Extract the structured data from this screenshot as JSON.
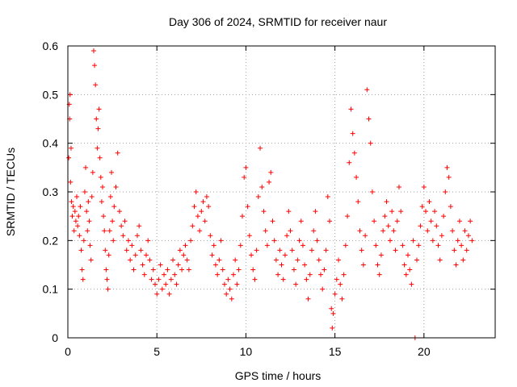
{
  "chart_data": {
    "type": "scatter",
    "title": "Day 306 of 2024, SRMTID for receiver naur",
    "xlabel": "GPS time / hours",
    "ylabel": "SRMTID / TECUs",
    "xlim": [
      0,
      24
    ],
    "ylim": [
      0,
      0.6
    ],
    "xticks": [
      0,
      5,
      10,
      15,
      20
    ],
    "xtick_labels": [
      "0",
      "5",
      "10",
      "15",
      "20"
    ],
    "yticks": [
      0,
      0.1,
      0.2,
      0.3,
      0.4,
      0.5,
      0.6
    ],
    "ytick_labels": [
      "0",
      "0.1",
      "0.2",
      "0.3",
      "0.4",
      "0.5",
      "0.6"
    ],
    "grid": true,
    "marker": "+",
    "color": "#ff0000",
    "series": [
      {
        "name": "SRMTID",
        "points": [
          [
            0.05,
            0.37
          ],
          [
            0.08,
            0.48
          ],
          [
            0.1,
            0.45
          ],
          [
            0.12,
            0.5
          ],
          [
            0.15,
            0.32
          ],
          [
            0.18,
            0.39
          ],
          [
            0.2,
            0.28
          ],
          [
            0.25,
            0.25
          ],
          [
            0.3,
            0.27
          ],
          [
            0.35,
            0.22
          ],
          [
            0.4,
            0.26
          ],
          [
            0.45,
            0.24
          ],
          [
            0.5,
            0.29
          ],
          [
            0.55,
            0.23
          ],
          [
            0.6,
            0.25
          ],
          [
            0.65,
            0.21
          ],
          [
            0.7,
            0.27
          ],
          [
            0.75,
            0.18
          ],
          [
            0.8,
            0.14
          ],
          [
            0.85,
            0.12
          ],
          [
            0.9,
            0.2
          ],
          [
            0.95,
            0.3
          ],
          [
            1.0,
            0.35
          ],
          [
            1.05,
            0.26
          ],
          [
            1.1,
            0.22
          ],
          [
            1.15,
            0.28
          ],
          [
            1.2,
            0.24
          ],
          [
            1.25,
            0.19
          ],
          [
            1.3,
            0.16
          ],
          [
            1.35,
            0.29
          ],
          [
            1.4,
            0.34
          ],
          [
            1.45,
            0.59
          ],
          [
            1.5,
            0.56
          ],
          [
            1.55,
            0.52
          ],
          [
            1.6,
            0.45
          ],
          [
            1.65,
            0.39
          ],
          [
            1.7,
            0.43
          ],
          [
            1.75,
            0.47
          ],
          [
            1.8,
            0.37
          ],
          [
            1.85,
            0.33
          ],
          [
            1.9,
            0.28
          ],
          [
            1.95,
            0.31
          ],
          [
            2.0,
            0.25
          ],
          [
            2.05,
            0.22
          ],
          [
            2.1,
            0.18
          ],
          [
            2.15,
            0.14
          ],
          [
            2.2,
            0.12
          ],
          [
            2.25,
            0.1
          ],
          [
            2.3,
            0.17
          ],
          [
            2.35,
            0.22
          ],
          [
            2.4,
            0.29
          ],
          [
            2.45,
            0.34
          ],
          [
            2.5,
            0.24
          ],
          [
            2.55,
            0.2
          ],
          [
            2.6,
            0.27
          ],
          [
            2.7,
            0.31
          ],
          [
            2.8,
            0.38
          ],
          [
            2.9,
            0.26
          ],
          [
            3.0,
            0.23
          ],
          [
            3.1,
            0.21
          ],
          [
            3.2,
            0.24
          ],
          [
            3.3,
            0.18
          ],
          [
            3.4,
            0.2
          ],
          [
            3.5,
            0.16
          ],
          [
            3.6,
            0.19
          ],
          [
            3.7,
            0.14
          ],
          [
            3.8,
            0.17
          ],
          [
            3.9,
            0.21
          ],
          [
            4.0,
            0.23
          ],
          [
            4.1,
            0.18
          ],
          [
            4.2,
            0.15
          ],
          [
            4.3,
            0.13
          ],
          [
            4.4,
            0.17
          ],
          [
            4.5,
            0.2
          ],
          [
            4.6,
            0.16
          ],
          [
            4.7,
            0.12
          ],
          [
            4.8,
            0.14
          ],
          [
            4.9,
            0.11
          ],
          [
            5.0,
            0.09
          ],
          [
            5.1,
            0.12
          ],
          [
            5.2,
            0.15
          ],
          [
            5.3,
            0.1
          ],
          [
            5.4,
            0.13
          ],
          [
            5.5,
            0.11
          ],
          [
            5.6,
            0.14
          ],
          [
            5.7,
            0.09
          ],
          [
            5.8,
            0.12
          ],
          [
            5.9,
            0.16
          ],
          [
            6.0,
            0.13
          ],
          [
            6.1,
            0.11
          ],
          [
            6.2,
            0.15
          ],
          [
            6.3,
            0.18
          ],
          [
            6.4,
            0.14
          ],
          [
            6.5,
            0.17
          ],
          [
            6.6,
            0.19
          ],
          [
            6.7,
            0.16
          ],
          [
            6.8,
            0.14
          ],
          [
            6.9,
            0.2
          ],
          [
            7.0,
            0.23
          ],
          [
            7.1,
            0.27
          ],
          [
            7.2,
            0.3
          ],
          [
            7.3,
            0.25
          ],
          [
            7.4,
            0.22
          ],
          [
            7.5,
            0.26
          ],
          [
            7.6,
            0.28
          ],
          [
            7.7,
            0.24
          ],
          [
            7.8,
            0.29
          ],
          [
            7.9,
            0.27
          ],
          [
            8.0,
            0.21
          ],
          [
            8.1,
            0.17
          ],
          [
            8.2,
            0.19
          ],
          [
            8.3,
            0.15
          ],
          [
            8.4,
            0.13
          ],
          [
            8.5,
            0.16
          ],
          [
            8.6,
            0.2
          ],
          [
            8.7,
            0.14
          ],
          [
            8.8,
            0.11
          ],
          [
            8.9,
            0.09
          ],
          [
            9.0,
            0.12
          ],
          [
            9.1,
            0.1
          ],
          [
            9.2,
            0.08
          ],
          [
            9.3,
            0.13
          ],
          [
            9.4,
            0.16
          ],
          [
            9.5,
            0.11
          ],
          [
            9.6,
            0.14
          ],
          [
            9.7,
            0.19
          ],
          [
            9.8,
            0.25
          ],
          [
            9.9,
            0.33
          ],
          [
            10.0,
            0.35
          ],
          [
            10.1,
            0.27
          ],
          [
            10.2,
            0.21
          ],
          [
            10.3,
            0.17
          ],
          [
            10.4,
            0.14
          ],
          [
            10.5,
            0.12
          ],
          [
            10.6,
            0.18
          ],
          [
            10.7,
            0.29
          ],
          [
            10.8,
            0.39
          ],
          [
            10.9,
            0.31
          ],
          [
            11.0,
            0.26
          ],
          [
            11.1,
            0.22
          ],
          [
            11.2,
            0.19
          ],
          [
            11.3,
            0.32
          ],
          [
            11.4,
            0.34
          ],
          [
            11.5,
            0.24
          ],
          [
            11.6,
            0.2
          ],
          [
            11.7,
            0.16
          ],
          [
            11.8,
            0.13
          ],
          [
            11.9,
            0.18
          ],
          [
            12.0,
            0.15
          ],
          [
            12.1,
            0.12
          ],
          [
            12.2,
            0.17
          ],
          [
            12.3,
            0.21
          ],
          [
            12.4,
            0.26
          ],
          [
            12.5,
            0.22
          ],
          [
            12.6,
            0.18
          ],
          [
            12.7,
            0.14
          ],
          [
            12.8,
            0.11
          ],
          [
            12.9,
            0.16
          ],
          [
            13.0,
            0.2
          ],
          [
            13.1,
            0.24
          ],
          [
            13.2,
            0.19
          ],
          [
            13.3,
            0.15
          ],
          [
            13.4,
            0.12
          ],
          [
            13.5,
            0.08
          ],
          [
            13.6,
            0.13
          ],
          [
            13.7,
            0.18
          ],
          [
            13.8,
            0.22
          ],
          [
            13.9,
            0.26
          ],
          [
            14.0,
            0.2
          ],
          [
            14.1,
            0.16
          ],
          [
            14.2,
            0.13
          ],
          [
            14.3,
            0.1
          ],
          [
            14.4,
            0.14
          ],
          [
            14.5,
            0.18
          ],
          [
            14.6,
            0.29
          ],
          [
            14.7,
            0.24
          ],
          [
            14.8,
            0.06
          ],
          [
            14.85,
            0.02
          ],
          [
            14.9,
            0.05
          ],
          [
            15.0,
            0.09
          ],
          [
            15.1,
            0.12
          ],
          [
            15.2,
            0.16
          ],
          [
            15.3,
            0.11
          ],
          [
            15.4,
            0.08
          ],
          [
            15.5,
            0.13
          ],
          [
            15.6,
            0.19
          ],
          [
            15.7,
            0.25
          ],
          [
            15.8,
            0.36
          ],
          [
            15.9,
            0.47
          ],
          [
            16.0,
            0.42
          ],
          [
            16.1,
            0.38
          ],
          [
            16.2,
            0.33
          ],
          [
            16.3,
            0.28
          ],
          [
            16.4,
            0.22
          ],
          [
            16.5,
            0.18
          ],
          [
            16.6,
            0.15
          ],
          [
            16.7,
            0.21
          ],
          [
            16.8,
            0.51
          ],
          [
            16.9,
            0.45
          ],
          [
            17.0,
            0.4
          ],
          [
            17.1,
            0.3
          ],
          [
            17.2,
            0.24
          ],
          [
            17.3,
            0.19
          ],
          [
            17.4,
            0.15
          ],
          [
            17.5,
            0.13
          ],
          [
            17.6,
            0.17
          ],
          [
            17.7,
            0.22
          ],
          [
            17.8,
            0.25
          ],
          [
            17.9,
            0.28
          ],
          [
            18.0,
            0.23
          ],
          [
            18.1,
            0.2
          ],
          [
            18.2,
            0.26
          ],
          [
            18.3,
            0.22
          ],
          [
            18.4,
            0.18
          ],
          [
            18.5,
            0.24
          ],
          [
            18.6,
            0.31
          ],
          [
            18.7,
            0.26
          ],
          [
            18.8,
            0.19
          ],
          [
            18.9,
            0.15
          ],
          [
            19.0,
            0.13
          ],
          [
            19.1,
            0.17
          ],
          [
            19.2,
            0.14
          ],
          [
            19.3,
            0.11
          ],
          [
            19.4,
            0.2
          ],
          [
            19.5,
            0.0
          ],
          [
            19.6,
            0.16
          ],
          [
            19.7,
            0.19
          ],
          [
            19.8,
            0.23
          ],
          [
            19.9,
            0.27
          ],
          [
            20.0,
            0.31
          ],
          [
            20.1,
            0.26
          ],
          [
            20.2,
            0.22
          ],
          [
            20.3,
            0.28
          ],
          [
            20.4,
            0.24
          ],
          [
            20.5,
            0.2
          ],
          [
            20.6,
            0.26
          ],
          [
            20.7,
            0.23
          ],
          [
            20.8,
            0.19
          ],
          [
            20.9,
            0.16
          ],
          [
            21.0,
            0.21
          ],
          [
            21.1,
            0.25
          ],
          [
            21.2,
            0.3
          ],
          [
            21.3,
            0.35
          ],
          [
            21.4,
            0.33
          ],
          [
            21.5,
            0.27
          ],
          [
            21.6,
            0.22
          ],
          [
            21.7,
            0.18
          ],
          [
            21.8,
            0.15
          ],
          [
            21.9,
            0.2
          ],
          [
            22.0,
            0.24
          ],
          [
            22.1,
            0.19
          ],
          [
            22.2,
            0.16
          ],
          [
            22.3,
            0.22
          ],
          [
            22.4,
            0.18
          ],
          [
            22.5,
            0.21
          ],
          [
            22.6,
            0.24
          ],
          [
            22.7,
            0.2
          ]
        ]
      }
    ]
  }
}
